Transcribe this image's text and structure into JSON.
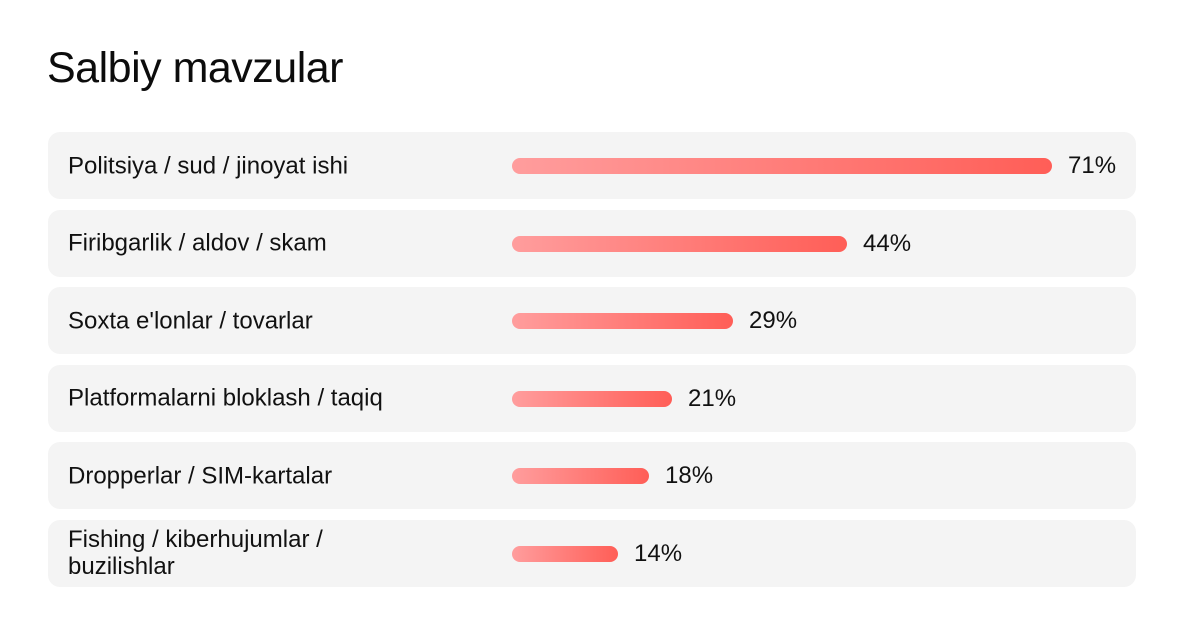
{
  "chart_data": {
    "type": "bar",
    "orientation": "horizontal",
    "title": "Salbiy mavzular",
    "xlabel": "",
    "ylabel": "",
    "xlim": [
      0,
      71
    ],
    "grid": false,
    "legend": "none",
    "value_suffix": "%",
    "bar_colors": {
      "start": "#ff9d9d",
      "end": "#ff5e57"
    },
    "categories": [
      "Politsiya / sud / jinoyat ishi",
      "Firibgarlik / aldov / skam",
      "Soxta e'lonlar / tovarlar",
      "Platformalarni bloklash / taqiq",
      "Dropperlar / SIM-kartalar",
      "Fishing / kiberhujumlar / buzilishlar"
    ],
    "values": [
      71,
      44,
      29,
      21,
      18,
      14
    ],
    "value_labels": [
      "71%",
      "44%",
      "29%",
      "21%",
      "18%",
      "14%"
    ]
  }
}
